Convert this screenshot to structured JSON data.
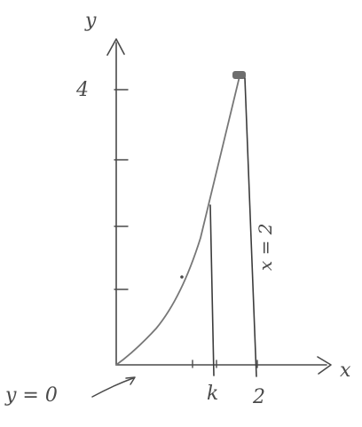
{
  "labels": {
    "y_axis": "y",
    "x_axis": "x",
    "y_tick_4": "4",
    "x_tick_k": "k",
    "x_tick_2": "2",
    "line_x2": "x = 2",
    "curve_y0": "y = 0"
  },
  "colors": {
    "ink": "#4a4a4a",
    "point": "#6e6e6e"
  }
}
